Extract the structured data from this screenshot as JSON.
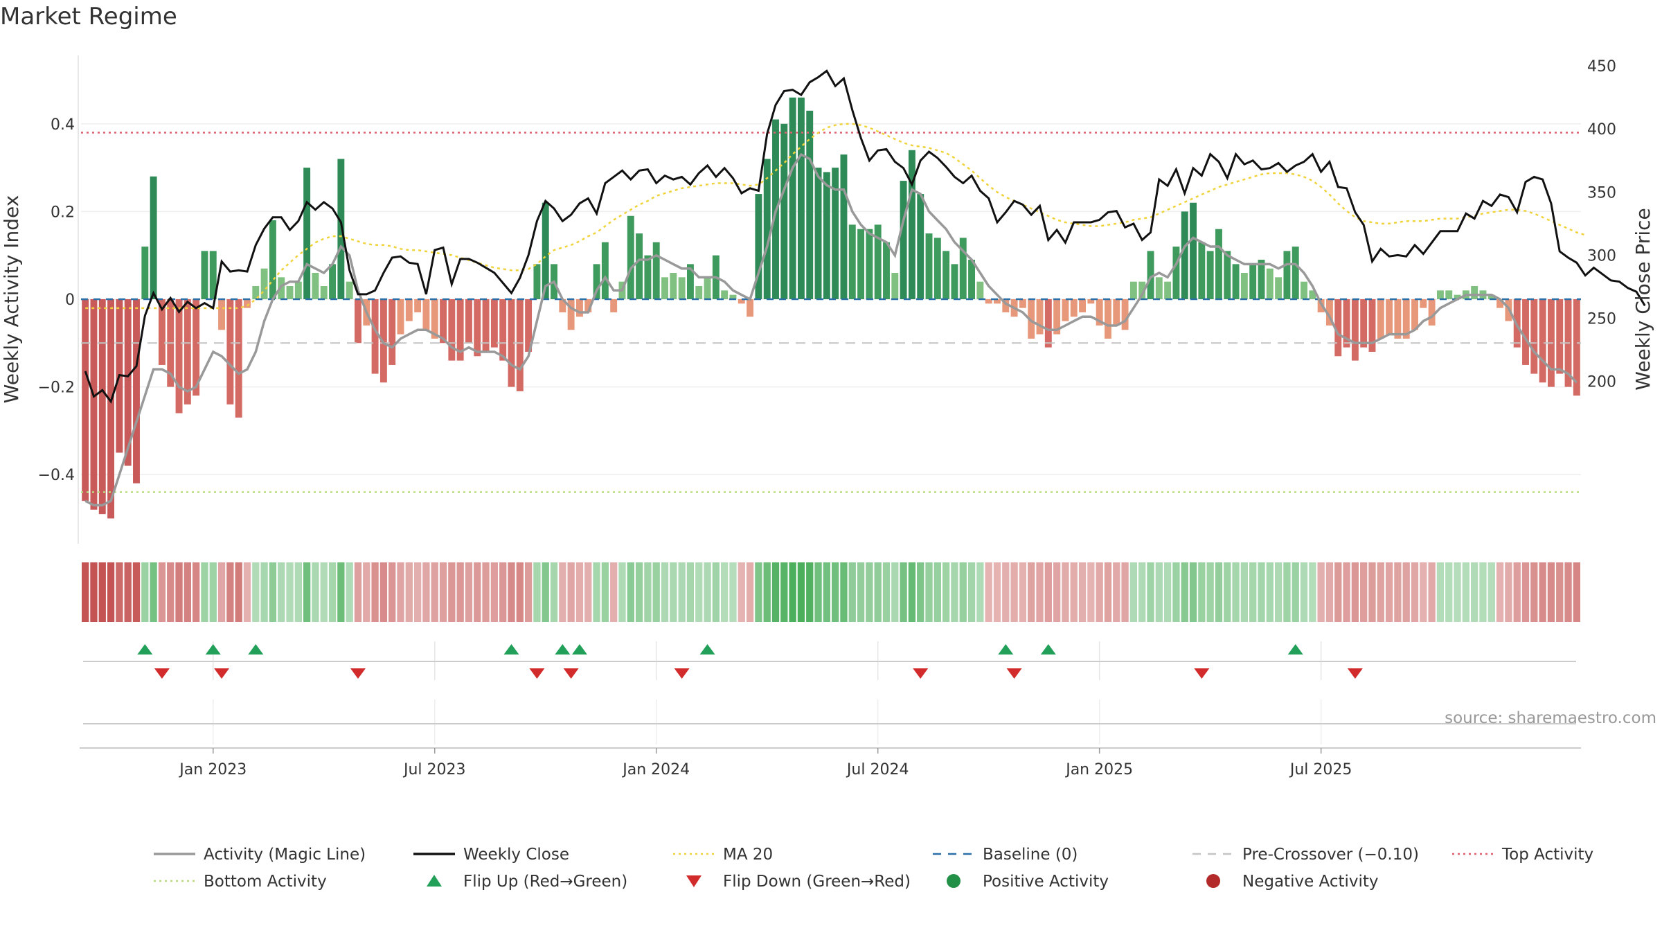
{
  "chart_data": {
    "type": "bar",
    "title": "Market Regime",
    "ylabel_left": "Weekly Activity Index",
    "ylabel_right": "Weekly Close Price",
    "ylim_left": [
      -0.55,
      0.55
    ],
    "ylim_right": [
      165,
      450
    ],
    "left_ticks": [
      {
        "value": 0.4,
        "label": "0.4"
      },
      {
        "value": 0.2,
        "label": "0.2"
      },
      {
        "value": 0.0,
        "label": "0"
      },
      {
        "value": -0.2,
        "label": "−0.2"
      },
      {
        "value": -0.4,
        "label": "−0.4"
      }
    ],
    "right_ticks": [
      {
        "value": 450,
        "label": "450"
      },
      {
        "value": 400,
        "label": "400"
      },
      {
        "value": 350,
        "label": "350"
      },
      {
        "value": 300,
        "label": "300"
      },
      {
        "value": 250,
        "label": "250"
      },
      {
        "value": 200,
        "label": "200"
      }
    ],
    "x_ticks": [
      {
        "week": 15,
        "label": "Jan 2023"
      },
      {
        "week": 41,
        "label": "Jul 2023"
      },
      {
        "week": 67,
        "label": "Jan 2024"
      },
      {
        "week": 93,
        "label": "Jul 2024"
      },
      {
        "week": 119,
        "label": "Jan 2025"
      },
      {
        "week": 145,
        "label": "Jul 2025"
      }
    ],
    "reference_lines": {
      "top_activity": 0.38,
      "bottom_activity": -0.44,
      "pre_crossover": -0.1,
      "baseline": 0
    },
    "activity": [
      -0.46,
      -0.48,
      -0.49,
      -0.5,
      -0.35,
      -0.38,
      -0.42,
      0.12,
      0.28,
      -0.15,
      -0.2,
      -0.26,
      -0.24,
      -0.22,
      0.11,
      0.11,
      -0.07,
      -0.24,
      -0.27,
      -0.02,
      0.03,
      0.07,
      0.18,
      0.05,
      0.03,
      0.04,
      0.3,
      0.06,
      0.03,
      0.08,
      0.32,
      0.04,
      -0.1,
      -0.06,
      -0.17,
      -0.19,
      -0.15,
      -0.08,
      -0.05,
      -0.03,
      -0.07,
      -0.09,
      -0.1,
      -0.14,
      -0.14,
      -0.1,
      -0.13,
      -0.12,
      -0.11,
      -0.14,
      -0.2,
      -0.21,
      -0.12,
      0.08,
      0.22,
      0.08,
      -0.03,
      -0.07,
      -0.04,
      -0.03,
      0.08,
      0.13,
      -0.03,
      0.04,
      0.19,
      0.15,
      0.1,
      0.13,
      0.05,
      0.06,
      0.05,
      0.08,
      0.03,
      0.05,
      0.1,
      0.02,
      0.01,
      -0.01,
      -0.04,
      0.24,
      0.32,
      0.41,
      0.4,
      0.46,
      0.46,
      0.43,
      0.3,
      0.29,
      0.3,
      0.33,
      0.17,
      0.16,
      0.16,
      0.17,
      0.13,
      0.06,
      0.27,
      0.34,
      0.24,
      0.15,
      0.14,
      0.11,
      0.08,
      0.14,
      0.09,
      0.04,
      -0.01,
      -0.01,
      -0.03,
      -0.04,
      -0.02,
      -0.09,
      -0.08,
      -0.11,
      -0.08,
      -0.05,
      -0.04,
      -0.03,
      -0.01,
      -0.06,
      -0.09,
      -0.06,
      -0.07,
      0.04,
      0.04,
      0.11,
      0.05,
      0.04,
      0.12,
      0.2,
      0.22,
      0.13,
      0.11,
      0.16,
      0.11,
      0.08,
      0.06,
      0.08,
      0.09,
      0.07,
      0.05,
      0.11,
      0.12,
      0.04,
      0.02,
      -0.03,
      -0.06,
      -0.13,
      -0.11,
      -0.14,
      -0.11,
      -0.12,
      -0.09,
      -0.08,
      -0.09,
      -0.09,
      -0.07,
      -0.02,
      -0.06,
      0.02,
      0.02,
      0.01,
      0.02,
      0.03,
      0.02,
      0.01,
      -0.02,
      -0.05,
      -0.11,
      -0.15,
      -0.17,
      -0.19,
      -0.2,
      -0.17,
      -0.2,
      -0.22
    ],
    "magic_line": [
      -0.46,
      -0.47,
      -0.47,
      -0.46,
      -0.4,
      -0.34,
      -0.28,
      -0.22,
      -0.16,
      -0.16,
      -0.17,
      -0.2,
      -0.21,
      -0.2,
      -0.16,
      -0.12,
      -0.13,
      -0.15,
      -0.17,
      -0.16,
      -0.12,
      -0.05,
      0.0,
      0.03,
      0.04,
      0.04,
      0.08,
      0.07,
      0.06,
      0.08,
      0.12,
      0.1,
      0.02,
      -0.03,
      -0.07,
      -0.1,
      -0.11,
      -0.09,
      -0.08,
      -0.07,
      -0.07,
      -0.08,
      -0.09,
      -0.11,
      -0.12,
      -0.11,
      -0.12,
      -0.12,
      -0.12,
      -0.13,
      -0.15,
      -0.16,
      -0.13,
      -0.05,
      0.03,
      0.04,
      0.0,
      -0.02,
      -0.03,
      -0.03,
      0.02,
      0.05,
      0.02,
      0.02,
      0.07,
      0.09,
      0.09,
      0.1,
      0.09,
      0.08,
      0.07,
      0.07,
      0.05,
      0.05,
      0.05,
      0.04,
      0.02,
      0.01,
      0.0,
      0.06,
      0.12,
      0.2,
      0.25,
      0.3,
      0.33,
      0.32,
      0.28,
      0.26,
      0.25,
      0.25,
      0.2,
      0.17,
      0.15,
      0.14,
      0.13,
      0.1,
      0.18,
      0.25,
      0.24,
      0.2,
      0.18,
      0.16,
      0.13,
      0.11,
      0.09,
      0.06,
      0.03,
      0.01,
      -0.01,
      -0.02,
      -0.03,
      -0.05,
      -0.06,
      -0.07,
      -0.07,
      -0.06,
      -0.05,
      -0.04,
      -0.04,
      -0.05,
      -0.06,
      -0.06,
      -0.05,
      -0.02,
      0.01,
      0.05,
      0.06,
      0.05,
      0.08,
      0.12,
      0.14,
      0.13,
      0.12,
      0.12,
      0.1,
      0.09,
      0.08,
      0.08,
      0.08,
      0.08,
      0.07,
      0.08,
      0.08,
      0.06,
      0.03,
      -0.01,
      -0.04,
      -0.08,
      -0.09,
      -0.1,
      -0.1,
      -0.1,
      -0.09,
      -0.08,
      -0.08,
      -0.08,
      -0.07,
      -0.05,
      -0.04,
      -0.02,
      -0.01,
      0.0,
      0.01,
      0.01,
      0.01,
      0.01,
      0.0,
      -0.02,
      -0.06,
      -0.09,
      -0.12,
      -0.14,
      -0.16,
      -0.16,
      -0.17,
      -0.19
    ],
    "weekly_close": [
      208,
      188,
      193,
      184,
      205,
      204,
      212,
      252,
      270,
      257,
      266,
      255,
      263,
      258,
      262,
      258,
      295,
      287,
      288,
      287,
      308,
      321,
      330,
      330,
      320,
      327,
      342,
      336,
      342,
      337,
      326,
      288,
      269,
      269,
      272,
      286,
      298,
      299,
      294,
      293,
      269,
      304,
      306,
      277,
      297,
      297,
      294,
      290,
      286,
      278,
      270,
      282,
      300,
      327,
      343,
      337,
      327,
      332,
      341,
      345,
      333,
      357,
      362,
      367,
      360,
      367,
      368,
      357,
      363,
      360,
      362,
      356,
      365,
      371,
      362,
      369,
      361,
      349,
      353,
      351,
      396,
      419,
      430,
      431,
      427,
      437,
      441,
      446,
      434,
      440,
      415,
      393,
      375,
      383,
      384,
      374,
      369,
      356,
      375,
      382,
      377,
      370,
      362,
      357,
      363,
      351,
      345,
      326,
      334,
      343,
      340,
      332,
      339,
      312,
      320,
      310,
      326,
      326,
      326,
      328,
      334,
      335,
      322,
      325,
      312,
      318,
      360,
      355,
      368,
      349,
      369,
      363,
      380,
      374,
      361,
      380,
      372,
      375,
      368,
      369,
      373,
      366,
      371,
      374,
      380,
      366,
      374,
      354,
      353,
      334,
      324,
      295,
      305,
      299,
      300,
      299,
      308,
      301,
      310,
      319,
      319,
      319,
      333,
      329,
      343,
      339,
      348,
      346,
      334,
      358,
      362,
      360,
      341,
      303,
      298,
      294,
      284,
      290,
      285,
      280,
      279,
      274,
      271,
      260
    ],
    "ma20": [
      258,
      258,
      258,
      258,
      258,
      258,
      258,
      258,
      258,
      258,
      258,
      258,
      258,
      258,
      258,
      258,
      258,
      258,
      258,
      260,
      265,
      272,
      280,
      288,
      294,
      300,
      305,
      310,
      313,
      315,
      315,
      313,
      311,
      309,
      308,
      308,
      307,
      305,
      304,
      304,
      303,
      302,
      301,
      300,
      298,
      296,
      294,
      292,
      290,
      289,
      288,
      288,
      289,
      293,
      299,
      304,
      306,
      308,
      311,
      315,
      318,
      323,
      328,
      332,
      336,
      340,
      343,
      347,
      349,
      351,
      353,
      354,
      355,
      356,
      357,
      357,
      357,
      356,
      355,
      356,
      361,
      367,
      373,
      380,
      386,
      392,
      397,
      401,
      403,
      404,
      404,
      403,
      401,
      398,
      395,
      392,
      389,
      387,
      386,
      385,
      383,
      381,
      377,
      372,
      367,
      361,
      355,
      350,
      346,
      343,
      340,
      337,
      334,
      331,
      328,
      326,
      325,
      324,
      323,
      323,
      324,
      325,
      326,
      328,
      329,
      330,
      333,
      336,
      339,
      342,
      345,
      348,
      351,
      354,
      356,
      358,
      360,
      362,
      364,
      365,
      365,
      365,
      364,
      362,
      359,
      354,
      348,
      341,
      335,
      330,
      327,
      326,
      325,
      325,
      326,
      327,
      327,
      327,
      328,
      329,
      329,
      329,
      330,
      331,
      333,
      334,
      335,
      336,
      336,
      335,
      333,
      330,
      327,
      324,
      321,
      318,
      316
    ],
    "flip_up_weeks": [
      7,
      15,
      20,
      50,
      56,
      58,
      73,
      108,
      113,
      142
    ],
    "flip_down_weeks": [
      9,
      16,
      32,
      53,
      57,
      70,
      98,
      109,
      131,
      149
    ]
  },
  "legend": [
    {
      "label": "Activity (Magic Line)",
      "symbol": "line",
      "color": "#999999"
    },
    {
      "label": "Weekly Close",
      "symbol": "line",
      "color": "#111111"
    },
    {
      "label": "MA 20",
      "symbol": "dotted",
      "color": "#f0d33a"
    },
    {
      "label": "Baseline (0)",
      "symbol": "dashed",
      "color": "#2a6fa8"
    },
    {
      "label": "Pre-Crossover (−0.10)",
      "symbol": "dashed",
      "color": "#c4c4c4"
    },
    {
      "label": "Top Activity",
      "symbol": "dotted",
      "color": "#e06070"
    },
    {
      "label": "Bottom Activity",
      "symbol": "dotted",
      "color": "#b7dc7b"
    },
    {
      "label": "Flip Up (Red→Green)",
      "symbol": "triangle-up",
      "color": "#22a05a"
    },
    {
      "label": "Flip Down (Green→Red)",
      "symbol": "triangle-down",
      "color": "#d22b2b"
    },
    {
      "label": "Positive Activity",
      "symbol": "dot",
      "color": "#239048"
    },
    {
      "label": "Negative Activity",
      "symbol": "dot",
      "color": "#b22a2a"
    }
  ],
  "source_text": "source: sharemaestro.com",
  "colors": {
    "positive_strong": "#2e8b57",
    "positive_weak": "#80c080",
    "negative_strong": "#c85a5a",
    "negative_weak": "#e8987a",
    "close_line": "#111111",
    "magic_line": "#999999"
  }
}
